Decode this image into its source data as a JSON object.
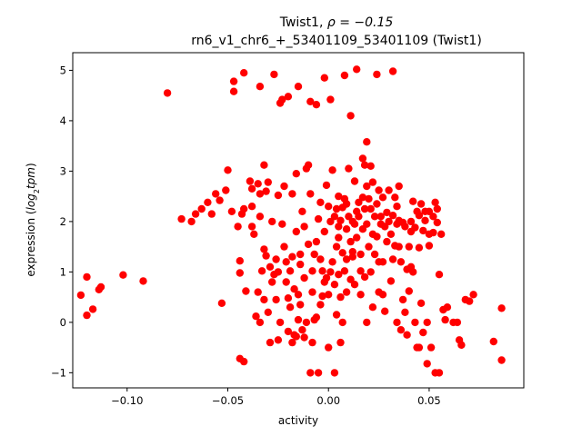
{
  "chart_data": {
    "type": "scatter",
    "title_line1_prefix": "Twist1, ",
    "title_line1_rho": "ρ = −0.15",
    "title_line2": "rn6_v1_chr6_+_53401109_53401109 (Twist1)",
    "xlabel": "activity",
    "ylabel_prefix": "expression (",
    "ylabel_italic": "log",
    "ylabel_sub": "2",
    "ylabel_italic2": "tpm",
    "ylabel_suffix": ")",
    "xlim": [
      -0.127,
      0.097
    ],
    "ylim": [
      -1.3,
      5.35
    ],
    "xticks": [
      -0.1,
      -0.05,
      0.0,
      0.05
    ],
    "xtick_labels": [
      "−0.10",
      "−0.05",
      "0.00",
      "0.05"
    ],
    "yticks": [
      -1,
      0,
      1,
      2,
      3,
      4,
      5
    ],
    "ytick_labels": [
      "−1",
      "0",
      "1",
      "2",
      "3",
      "4",
      "5"
    ],
    "marker_color": "#ff0000",
    "grid": false,
    "points": [
      [
        -0.123,
        0.54
      ],
      [
        -0.12,
        0.9
      ],
      [
        -0.12,
        0.14
      ],
      [
        -0.117,
        0.26
      ],
      [
        -0.114,
        0.65
      ],
      [
        -0.113,
        0.7
      ],
      [
        -0.102,
        0.94
      ],
      [
        -0.092,
        0.82
      ],
      [
        -0.08,
        4.55
      ],
      [
        -0.073,
        2.05
      ],
      [
        -0.068,
        2.0
      ],
      [
        -0.066,
        2.15
      ],
      [
        -0.063,
        2.25
      ],
      [
        -0.06,
        2.38
      ],
      [
        -0.058,
        2.15
      ],
      [
        -0.056,
        2.55
      ],
      [
        -0.054,
        2.42
      ],
      [
        -0.053,
        0.38
      ],
      [
        -0.051,
        2.62
      ],
      [
        -0.05,
        3.02
      ],
      [
        -0.048,
        2.2
      ],
      [
        -0.047,
        4.78
      ],
      [
        -0.047,
        4.58
      ],
      [
        -0.045,
        1.9
      ],
      [
        -0.044,
        1.22
      ],
      [
        -0.044,
        0.98
      ],
      [
        -0.044,
        -0.72
      ],
      [
        -0.042,
        -0.78
      ],
      [
        -0.043,
        2.15
      ],
      [
        -0.042,
        2.25
      ],
      [
        -0.042,
        4.95
      ],
      [
        -0.041,
        0.62
      ],
      [
        -0.039,
        2.8
      ],
      [
        -0.038,
        2.65
      ],
      [
        -0.038,
        2.3
      ],
      [
        -0.038,
        1.9
      ],
      [
        -0.037,
        1.75
      ],
      [
        -0.036,
        0.12
      ],
      [
        -0.035,
        2.75
      ],
      [
        -0.034,
        2.55
      ],
      [
        -0.034,
        2.1
      ],
      [
        -0.034,
        0.0
      ],
      [
        -0.034,
        4.68
      ],
      [
        -0.033,
        1.02
      ],
      [
        -0.032,
        3.12
      ],
      [
        -0.032,
        1.45
      ],
      [
        -0.032,
        0.45
      ],
      [
        -0.031,
        2.6
      ],
      [
        -0.031,
        1.32
      ],
      [
        -0.03,
        0.2
      ],
      [
        -0.03,
        2.78
      ],
      [
        -0.029,
        -0.4
      ],
      [
        -0.029,
        1.1
      ],
      [
        -0.028,
        0.8
      ],
      [
        -0.028,
        2.0
      ],
      [
        -0.027,
        4.92
      ],
      [
        -0.026,
        1.25
      ],
      [
        -0.026,
        0.45
      ],
      [
        -0.025,
        2.52
      ],
      [
        -0.025,
        -0.35
      ],
      [
        -0.024,
        0.0
      ],
      [
        -0.024,
        4.35
      ],
      [
        -0.023,
        4.42
      ],
      [
        -0.023,
        1.95
      ],
      [
        -0.022,
        1.5
      ],
      [
        -0.022,
        2.7
      ],
      [
        -0.021,
        1.2
      ],
      [
        -0.021,
        0.8
      ],
      [
        -0.02,
        0.48
      ],
      [
        -0.02,
        -0.18
      ],
      [
        -0.02,
        4.48
      ],
      [
        -0.019,
        1.02
      ],
      [
        -0.019,
        0.3
      ],
      [
        -0.018,
        2.55
      ],
      [
        -0.018,
        1.3
      ],
      [
        -0.018,
        -0.4
      ],
      [
        -0.017,
        0.66
      ],
      [
        -0.017,
        -0.25
      ],
      [
        -0.016,
        1.8
      ],
      [
        -0.016,
        2.95
      ],
      [
        -0.015,
        0.55
      ],
      [
        -0.015,
        4.68
      ],
      [
        -0.015,
        0.05
      ],
      [
        -0.014,
        1.15
      ],
      [
        -0.014,
        0.35
      ],
      [
        -0.014,
        1.35
      ],
      [
        -0.013,
        -0.15
      ],
      [
        -0.013,
        2.2
      ],
      [
        -0.012,
        1.9
      ],
      [
        -0.012,
        0.88
      ],
      [
        -0.012,
        -0.3
      ],
      [
        -0.011,
        3.05
      ],
      [
        -0.011,
        0.0
      ],
      [
        -0.01,
        1.55
      ],
      [
        -0.01,
        3.12
      ],
      [
        -0.009,
        -1.0
      ],
      [
        -0.009,
        4.38
      ],
      [
        -0.009,
        2.55
      ],
      [
        -0.008,
        1.02
      ],
      [
        -0.008,
        0.6
      ],
      [
        -0.008,
        -0.4
      ],
      [
        -0.007,
        1.35
      ],
      [
        -0.007,
        0.05
      ],
      [
        -0.006,
        0.1
      ],
      [
        -0.006,
        1.6
      ],
      [
        -0.006,
        4.32
      ],
      [
        -0.005,
        2.05
      ],
      [
        -0.005,
        -1.0
      ],
      [
        -0.004,
        2.38
      ],
      [
        -0.004,
        1.25
      ],
      [
        -0.004,
        0.35
      ],
      [
        -0.003,
        0.52
      ],
      [
        -0.003,
        1.02
      ],
      [
        -0.002,
        1.8
      ],
      [
        -0.002,
        4.85
      ],
      [
        -0.001,
        2.72
      ],
      [
        -0.001,
        0.88
      ],
      [
        0.0,
        2.3
      ],
      [
        0.0,
        0.55
      ],
      [
        0.0,
        -0.5
      ],
      [
        0.001,
        2.0
      ],
      [
        0.001,
        4.42
      ],
      [
        0.001,
        1.0
      ],
      [
        0.002,
        1.2
      ],
      [
        0.002,
        3.02
      ],
      [
        0.003,
        2.1
      ],
      [
        0.003,
        0.75
      ],
      [
        0.003,
        -1.0
      ],
      [
        0.004,
        1.5
      ],
      [
        0.004,
        2.25
      ],
      [
        0.004,
        0.15
      ],
      [
        0.005,
        1.68
      ],
      [
        0.005,
        2.5
      ],
      [
        0.005,
        0.95
      ],
      [
        0.006,
        2.02
      ],
      [
        0.006,
        0.5
      ],
      [
        0.006,
        -0.4
      ],
      [
        0.007,
        2.28
      ],
      [
        0.007,
        1.38
      ],
      [
        0.007,
        0.0
      ],
      [
        0.008,
        4.9
      ],
      [
        0.008,
        1.02
      ],
      [
        0.008,
        2.45
      ],
      [
        0.009,
        1.85
      ],
      [
        0.009,
        0.6
      ],
      [
        0.009,
        2.35
      ],
      [
        0.009,
        1.25
      ],
      [
        0.01,
        2.1
      ],
      [
        0.01,
        3.05
      ],
      [
        0.011,
        1.6
      ],
      [
        0.011,
        0.85
      ],
      [
        0.011,
        4.1
      ],
      [
        0.012,
        2.0
      ],
      [
        0.012,
        1.3
      ],
      [
        0.013,
        1.95
      ],
      [
        0.013,
        0.75
      ],
      [
        0.013,
        2.8
      ],
      [
        0.014,
        2.2
      ],
      [
        0.014,
        1.68
      ],
      [
        0.014,
        5.02
      ],
      [
        0.015,
        2.38
      ],
      [
        0.015,
        2.1
      ],
      [
        0.016,
        1.35
      ],
      [
        0.016,
        0.55
      ],
      [
        0.016,
        1.02
      ],
      [
        0.017,
        2.48
      ],
      [
        0.017,
        1.85
      ],
      [
        0.017,
        3.25
      ],
      [
        0.018,
        3.12
      ],
      [
        0.018,
        2.25
      ],
      [
        0.018,
        0.9
      ],
      [
        0.019,
        2.7
      ],
      [
        0.019,
        1.95
      ],
      [
        0.019,
        3.58
      ],
      [
        0.019,
        0.0
      ],
      [
        0.02,
        2.45
      ],
      [
        0.02,
        1.5
      ],
      [
        0.021,
        2.25
      ],
      [
        0.021,
        1.0
      ],
      [
        0.021,
        3.1
      ],
      [
        0.022,
        1.75
      ],
      [
        0.022,
        2.78
      ],
      [
        0.023,
        1.35
      ],
      [
        0.023,
        2.1
      ],
      [
        0.024,
        1.7
      ],
      [
        0.024,
        2.35
      ],
      [
        0.024,
        4.92
      ],
      [
        0.025,
        1.2
      ],
      [
        0.025,
        2.62
      ],
      [
        0.025,
        0.6
      ],
      [
        0.026,
        2.1
      ],
      [
        0.026,
        1.95
      ],
      [
        0.027,
        1.2
      ],
      [
        0.027,
        0.55
      ],
      [
        0.027,
        2.48
      ],
      [
        0.028,
        1.9
      ],
      [
        0.028,
        0.22
      ],
      [
        0.029,
        2.18
      ],
      [
        0.029,
        1.6
      ],
      [
        0.03,
        2.62
      ],
      [
        0.03,
        2.0
      ],
      [
        0.031,
        1.75
      ],
      [
        0.031,
        0.82
      ],
      [
        0.032,
        2.12
      ],
      [
        0.032,
        4.98
      ],
      [
        0.032,
        1.25
      ],
      [
        0.033,
        2.48
      ],
      [
        0.033,
        1.52
      ],
      [
        0.034,
        1.95
      ],
      [
        0.034,
        0.0
      ],
      [
        0.035,
        2.7
      ],
      [
        0.035,
        1.5
      ],
      [
        0.035,
        2.02
      ],
      [
        0.036,
        -0.15
      ],
      [
        0.036,
        1.2
      ],
      [
        0.037,
        1.98
      ],
      [
        0.037,
        0.45
      ],
      [
        0.038,
        1.9
      ],
      [
        0.038,
        0.2
      ],
      [
        0.039,
        1.05
      ],
      [
        0.039,
        -0.25
      ],
      [
        0.04,
        1.5
      ],
      [
        0.04,
        0.62
      ],
      [
        0.041,
        1.8
      ],
      [
        0.041,
        2.0
      ],
      [
        0.042,
        2.4
      ],
      [
        0.042,
        1.0
      ],
      [
        0.043,
        1.88
      ],
      [
        0.043,
        0.0
      ],
      [
        0.044,
        2.2
      ],
      [
        0.045,
        2.12
      ],
      [
        0.045,
        -0.5
      ],
      [
        0.045,
        1.48
      ],
      [
        0.046,
        2.35
      ],
      [
        0.046,
        0.38
      ],
      [
        0.047,
        1.82
      ],
      [
        0.047,
        -0.2
      ],
      [
        0.048,
        2.02
      ],
      [
        0.048,
        2.2
      ],
      [
        0.049,
        -0.82
      ],
      [
        0.049,
        0.0
      ],
      [
        0.05,
        1.75
      ],
      [
        0.05,
        2.2
      ],
      [
        0.05,
        1.52
      ],
      [
        0.051,
        -0.5
      ],
      [
        0.052,
        2.1
      ],
      [
        0.052,
        1.78
      ],
      [
        0.053,
        2.38
      ],
      [
        0.053,
        -1.0
      ],
      [
        0.054,
        2.25
      ],
      [
        0.054,
        1.98
      ],
      [
        0.055,
        0.95
      ],
      [
        0.055,
        -1.0
      ],
      [
        0.056,
        1.75
      ],
      [
        0.057,
        0.25
      ],
      [
        0.058,
        0.05
      ],
      [
        0.059,
        0.3
      ],
      [
        0.062,
        0.0
      ],
      [
        0.064,
        0.0
      ],
      [
        0.065,
        -0.35
      ],
      [
        0.066,
        -0.45
      ],
      [
        0.068,
        0.45
      ],
      [
        0.07,
        0.42
      ],
      [
        0.072,
        0.55
      ],
      [
        0.082,
        -0.38
      ],
      [
        0.086,
        0.28
      ],
      [
        0.086,
        -0.75
      ],
      [
        0.005,
        1.9
      ],
      [
        -0.035,
        0.6
      ],
      [
        -0.027,
        0.95
      ],
      [
        0.041,
        1.1
      ],
      [
        0.022,
        0.3
      ],
      [
        -0.016,
        -0.28
      ],
      [
        0.034,
        2.3
      ],
      [
        -0.002,
        0.8
      ],
      [
        0.044,
        -0.5
      ],
      [
        -0.025,
        1.0
      ],
      [
        0.012,
        1.4
      ]
    ]
  }
}
